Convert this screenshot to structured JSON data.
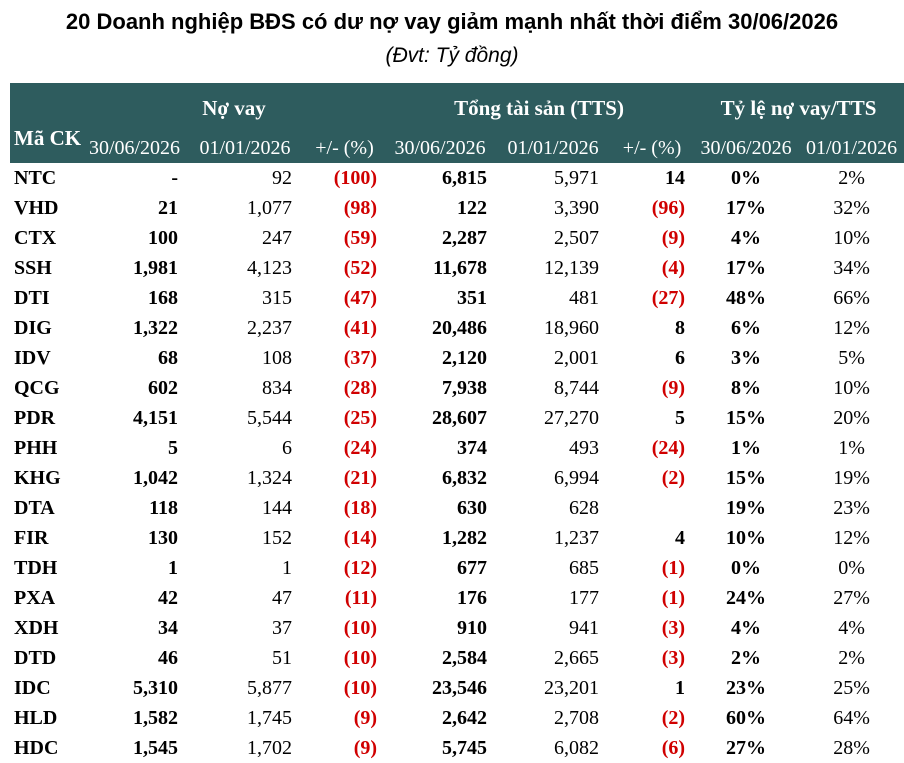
{
  "title": "20 Doanh nghiệp BĐS có dư nợ vay giảm mạnh nhất thời điểm 30/06/2026",
  "subtitle": "(Đvt: Tỷ đồng)",
  "headers": {
    "code": "Mã CK",
    "debt_group": "Nợ vay",
    "assets_group": "Tổng tài sản (TTS)",
    "ratio_group": "Tỷ lệ nợ vay/TTS",
    "date_new": "30/06/2026",
    "date_old": "01/01/2026",
    "change": "+/- (%)"
  },
  "colors": {
    "header_bg": "#2e5c5e",
    "negative": "#d00000"
  },
  "rows": [
    {
      "code": "NTC",
      "debt_new": "-",
      "debt_old": "92",
      "debt_chg": "(100)",
      "assets_new": "6,815",
      "assets_old": "5,971",
      "assets_chg": "14",
      "ratio_new": "0%",
      "ratio_old": "2%"
    },
    {
      "code": "VHD",
      "debt_new": "21",
      "debt_old": "1,077",
      "debt_chg": "(98)",
      "assets_new": "122",
      "assets_old": "3,390",
      "assets_chg": "(96)",
      "ratio_new": "17%",
      "ratio_old": "32%"
    },
    {
      "code": "CTX",
      "debt_new": "100",
      "debt_old": "247",
      "debt_chg": "(59)",
      "assets_new": "2,287",
      "assets_old": "2,507",
      "assets_chg": "(9)",
      "ratio_new": "4%",
      "ratio_old": "10%"
    },
    {
      "code": "SSH",
      "debt_new": "1,981",
      "debt_old": "4,123",
      "debt_chg": "(52)",
      "assets_new": "11,678",
      "assets_old": "12,139",
      "assets_chg": "(4)",
      "ratio_new": "17%",
      "ratio_old": "34%"
    },
    {
      "code": "DTI",
      "debt_new": "168",
      "debt_old": "315",
      "debt_chg": "(47)",
      "assets_new": "351",
      "assets_old": "481",
      "assets_chg": "(27)",
      "ratio_new": "48%",
      "ratio_old": "66%"
    },
    {
      "code": "DIG",
      "debt_new": "1,322",
      "debt_old": "2,237",
      "debt_chg": "(41)",
      "assets_new": "20,486",
      "assets_old": "18,960",
      "assets_chg": "8",
      "ratio_new": "6%",
      "ratio_old": "12%"
    },
    {
      "code": "IDV",
      "debt_new": "68",
      "debt_old": "108",
      "debt_chg": "(37)",
      "assets_new": "2,120",
      "assets_old": "2,001",
      "assets_chg": "6",
      "ratio_new": "3%",
      "ratio_old": "5%"
    },
    {
      "code": "QCG",
      "debt_new": "602",
      "debt_old": "834",
      "debt_chg": "(28)",
      "assets_new": "7,938",
      "assets_old": "8,744",
      "assets_chg": "(9)",
      "ratio_new": "8%",
      "ratio_old": "10%"
    },
    {
      "code": "PDR",
      "debt_new": "4,151",
      "debt_old": "5,544",
      "debt_chg": "(25)",
      "assets_new": "28,607",
      "assets_old": "27,270",
      "assets_chg": "5",
      "ratio_new": "15%",
      "ratio_old": "20%"
    },
    {
      "code": "PHH",
      "debt_new": "5",
      "debt_old": "6",
      "debt_chg": "(24)",
      "assets_new": "374",
      "assets_old": "493",
      "assets_chg": "(24)",
      "ratio_new": "1%",
      "ratio_old": "1%"
    },
    {
      "code": "KHG",
      "debt_new": "1,042",
      "debt_old": "1,324",
      "debt_chg": "(21)",
      "assets_new": "6,832",
      "assets_old": "6,994",
      "assets_chg": "(2)",
      "ratio_new": "15%",
      "ratio_old": "19%"
    },
    {
      "code": "DTA",
      "debt_new": "118",
      "debt_old": "144",
      "debt_chg": "(18)",
      "assets_new": "630",
      "assets_old": "628",
      "assets_chg": "",
      "ratio_new": "19%",
      "ratio_old": "23%"
    },
    {
      "code": "FIR",
      "debt_new": "130",
      "debt_old": "152",
      "debt_chg": "(14)",
      "assets_new": "1,282",
      "assets_old": "1,237",
      "assets_chg": "4",
      "ratio_new": "10%",
      "ratio_old": "12%"
    },
    {
      "code": "TDH",
      "debt_new": "1",
      "debt_old": "1",
      "debt_chg": "(12)",
      "assets_new": "677",
      "assets_old": "685",
      "assets_chg": "(1)",
      "ratio_new": "0%",
      "ratio_old": "0%"
    },
    {
      "code": "PXA",
      "debt_new": "42",
      "debt_old": "47",
      "debt_chg": "(11)",
      "assets_new": "176",
      "assets_old": "177",
      "assets_chg": "(1)",
      "ratio_new": "24%",
      "ratio_old": "27%"
    },
    {
      "code": "XDH",
      "debt_new": "34",
      "debt_old": "37",
      "debt_chg": "(10)",
      "assets_new": "910",
      "assets_old": "941",
      "assets_chg": "(3)",
      "ratio_new": "4%",
      "ratio_old": "4%"
    },
    {
      "code": "DTD",
      "debt_new": "46",
      "debt_old": "51",
      "debt_chg": "(10)",
      "assets_new": "2,584",
      "assets_old": "2,665",
      "assets_chg": "(3)",
      "ratio_new": "2%",
      "ratio_old": "2%"
    },
    {
      "code": "IDC",
      "debt_new": "5,310",
      "debt_old": "5,877",
      "debt_chg": "(10)",
      "assets_new": "23,546",
      "assets_old": "23,201",
      "assets_chg": "1",
      "ratio_new": "23%",
      "ratio_old": "25%"
    },
    {
      "code": "HLD",
      "debt_new": "1,582",
      "debt_old": "1,745",
      "debt_chg": "(9)",
      "assets_new": "2,642",
      "assets_old": "2,708",
      "assets_chg": "(2)",
      "ratio_new": "60%",
      "ratio_old": "64%"
    },
    {
      "code": "HDC",
      "debt_new": "1,545",
      "debt_old": "1,702",
      "debt_chg": "(9)",
      "assets_new": "5,745",
      "assets_old": "6,082",
      "assets_chg": "(6)",
      "ratio_new": "27%",
      "ratio_old": "28%"
    }
  ]
}
